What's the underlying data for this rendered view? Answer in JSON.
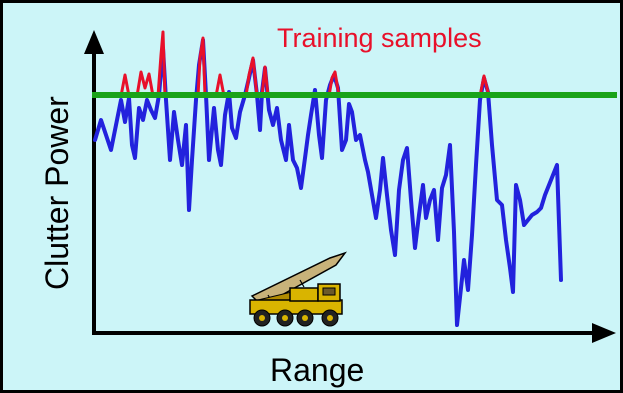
{
  "diagram": {
    "ylabel": "Clutter Power",
    "xlabel": "Range",
    "legend_label": "Training samples",
    "colors": {
      "background": "#ccf5f8",
      "axes": "#000000",
      "clutter_line": "#2222dd",
      "training_line": "#e8102a",
      "threshold_line": "#1aa31a",
      "legend_text": "#e8102a",
      "vehicle_body": "#d9b400",
      "vehicle_missile": "#c8b27a"
    },
    "icons": [
      "missile-launcher-truck-icon"
    ]
  }
}
